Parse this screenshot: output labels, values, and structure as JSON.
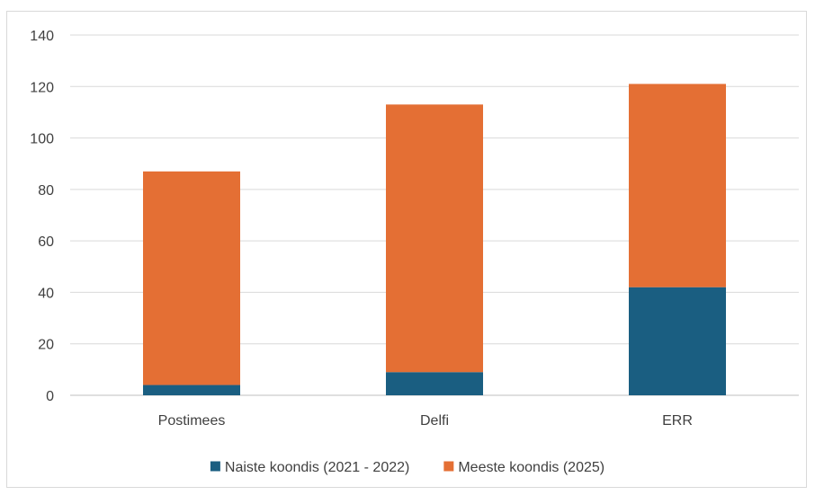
{
  "chart_data": {
    "type": "bar",
    "stacked": true,
    "categories": [
      "Postimees",
      "Delfi",
      "ERR"
    ],
    "series": [
      {
        "name": "Naiste koondis (2021 - 2022)",
        "values": [
          4,
          9,
          42
        ],
        "color": "#1a5e81"
      },
      {
        "name": "Meeste koondis (2025)",
        "values": [
          83,
          104,
          79
        ],
        "color": "#e46f34"
      }
    ],
    "ylim": [
      0,
      140
    ],
    "yticks": [
      "0",
      "20",
      "40",
      "60",
      "80",
      "100",
      "120",
      "140"
    ],
    "grid": true,
    "legend": "bottom"
  }
}
